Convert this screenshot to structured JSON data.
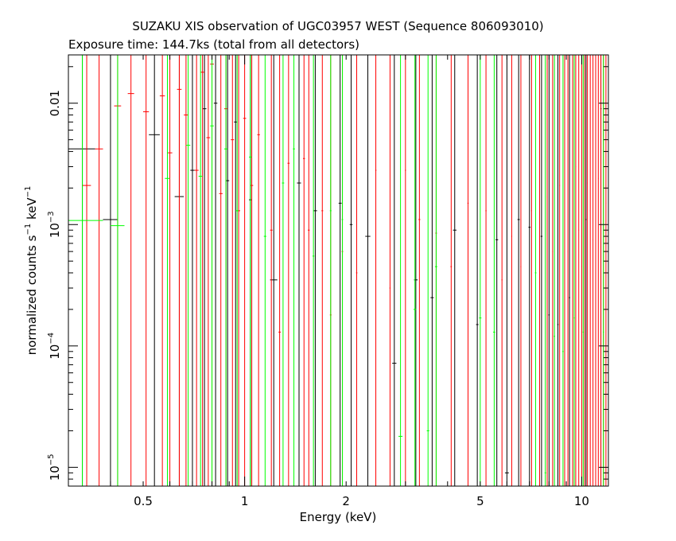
{
  "chart_data": {
    "type": "scatter",
    "title": "SUZAKU XIS observation of UGC03957 WEST (Sequence 806093010)",
    "subtitle": "Exposure time: 144.7ks (total from all detectors)",
    "xlabel": "Energy (keV)",
    "ylabel": {
      "main": "normalized counts s",
      "exp1": "−1",
      "mid": " keV",
      "exp2": "−1"
    },
    "xscale": "log",
    "yscale": "log",
    "xlim": [
      0.3,
      12.0
    ],
    "ylim": [
      7e-06,
      0.025
    ],
    "xticks": [
      {
        "value": 0.5,
        "label": "0.5"
      },
      {
        "value": 1,
        "label": "1"
      },
      {
        "value": 2,
        "label": "2"
      },
      {
        "value": 5,
        "label": "5"
      },
      {
        "value": 10,
        "label": "10"
      }
    ],
    "yticks": [
      {
        "value": 0.01,
        "base": "0.01",
        "exp": ""
      },
      {
        "value": 0.001,
        "base": "10",
        "exp": "−3"
      },
      {
        "value": 0.0001,
        "base": "10",
        "exp": "−4"
      },
      {
        "value": 1e-05,
        "base": "10",
        "exp": "−5"
      }
    ],
    "colors": {
      "black": "#000000",
      "red": "#ff0000",
      "green": "#00ff00"
    },
    "series": [
      {
        "color": "black",
        "points": [
          [
            0.33,
            0.0042,
            0.3,
            0.36
          ],
          [
            0.4,
            0.0011,
            0.38,
            0.42
          ],
          [
            0.54,
            0.0055,
            0.52,
            0.56
          ],
          [
            0.64,
            0.0017,
            0.62,
            0.66
          ],
          [
            0.7,
            0.0028,
            0.69,
            0.71
          ],
          [
            0.76,
            0.009,
            0.75,
            0.77
          ],
          [
            0.82,
            0.01,
            0.81,
            0.83
          ],
          [
            0.89,
            0.0023,
            0.88,
            0.9
          ],
          [
            0.94,
            0.007,
            0.93,
            0.95
          ],
          [
            1.04,
            0.0016,
            1.03,
            1.05
          ],
          [
            1.22,
            0.00035,
            1.19,
            1.25
          ],
          [
            1.45,
            0.0022,
            1.43,
            1.47
          ],
          [
            1.62,
            0.0013,
            1.6,
            1.64
          ],
          [
            1.92,
            0.0015,
            1.9,
            1.94
          ],
          [
            2.07,
            0.001,
            2.05,
            2.09
          ],
          [
            2.32,
            0.0008,
            2.28,
            2.36
          ],
          [
            2.78,
            7.2e-05,
            2.74,
            2.82
          ],
          [
            3.22,
            0.00035,
            3.18,
            3.26
          ],
          [
            3.6,
            0.00025,
            3.56,
            3.64
          ],
          [
            4.2,
            0.0009,
            4.15,
            4.25
          ],
          [
            4.9,
            0.00015,
            4.86,
            4.94
          ],
          [
            5.6,
            0.00075,
            5.55,
            5.65
          ],
          [
            6.0,
            9e-06,
            5.92,
            6.08
          ],
          [
            6.5,
            0.0011,
            6.45,
            6.55
          ],
          [
            7.0,
            0.00095,
            6.95,
            7.05
          ],
          [
            7.6,
            0.0008,
            7.55,
            7.65
          ],
          [
            8.0,
            0.00018,
            7.96,
            8.04
          ],
          [
            8.5,
            0.00015,
            8.46,
            8.54
          ],
          [
            9.2,
            0.00025,
            9.16,
            9.24
          ],
          [
            10.3,
            0.0011,
            10.26,
            10.34
          ],
          [
            11.4,
            0.009,
            11.35,
            11.45
          ]
        ]
      },
      {
        "color": "red",
        "points": [
          [
            0.34,
            0.0021,
            0.33,
            0.35
          ],
          [
            0.37,
            0.0042,
            0.36,
            0.38
          ],
          [
            0.42,
            0.0095,
            0.41,
            0.43
          ],
          [
            0.46,
            0.012,
            0.45,
            0.47
          ],
          [
            0.51,
            0.0085,
            0.5,
            0.52
          ],
          [
            0.57,
            0.0115,
            0.56,
            0.58
          ],
          [
            0.6,
            0.0039,
            0.59,
            0.61
          ],
          [
            0.64,
            0.013,
            0.63,
            0.65
          ],
          [
            0.67,
            0.008,
            0.66,
            0.68
          ],
          [
            0.72,
            0.0028,
            0.71,
            0.73
          ],
          [
            0.75,
            0.018,
            0.74,
            0.76
          ],
          [
            0.78,
            0.0052,
            0.77,
            0.79
          ],
          [
            0.8,
            0.021,
            0.79,
            0.81
          ],
          [
            0.85,
            0.0018,
            0.84,
            0.86
          ],
          [
            0.88,
            0.009,
            0.87,
            0.89
          ],
          [
            0.92,
            0.005,
            0.91,
            0.93
          ],
          [
            0.96,
            0.0013,
            0.95,
            0.97
          ],
          [
            1.0,
            0.0075,
            0.99,
            1.01
          ],
          [
            1.05,
            0.0021,
            1.04,
            1.06
          ],
          [
            1.1,
            0.0055,
            1.09,
            1.11
          ],
          [
            1.2,
            0.0009,
            1.19,
            1.21
          ],
          [
            1.27,
            0.00013,
            1.26,
            1.28
          ],
          [
            1.35,
            0.0032,
            1.34,
            1.36
          ],
          [
            1.5,
            0.0035,
            1.49,
            1.51
          ],
          [
            1.55,
            0.0009,
            1.54,
            1.56
          ],
          [
            1.7,
            0.0013,
            1.69,
            1.71
          ],
          [
            1.8,
            0.00018,
            1.79,
            1.81
          ],
          [
            1.95,
            0.0006,
            1.94,
            1.96
          ],
          [
            2.15,
            0.0004,
            2.14,
            2.16
          ],
          [
            2.45,
            0.0028,
            2.44,
            2.46
          ],
          [
            2.7,
            0.0003,
            2.69,
            2.71
          ],
          [
            3.0,
            0.0028,
            2.99,
            3.01
          ],
          [
            3.3,
            0.0011,
            3.28,
            3.32
          ],
          [
            3.7,
            0.00085,
            3.68,
            3.72
          ],
          [
            4.1,
            0.00045,
            4.08,
            4.12
          ],
          [
            4.6,
            0.0015,
            4.58,
            4.62
          ],
          [
            5.2,
            0.0013,
            5.18,
            5.22
          ],
          [
            5.8,
            0.00035,
            5.78,
            5.82
          ],
          [
            6.2,
            0.0008,
            6.18,
            6.22
          ],
          [
            6.6,
            0.00045,
            6.58,
            6.62
          ],
          [
            7.1,
            0.0013,
            7.08,
            7.12
          ],
          [
            7.5,
            0.00022,
            7.48,
            7.52
          ],
          [
            7.9,
            0.0017,
            7.88,
            7.92
          ],
          [
            8.2,
            0.0006,
            8.18,
            8.22
          ],
          [
            8.6,
            0.0021,
            8.58,
            8.62
          ],
          [
            8.9,
            0.0011,
            8.88,
            8.92
          ],
          [
            9.1,
            0.0006,
            9.08,
            9.12
          ],
          [
            9.4,
            0.00018,
            9.38,
            9.42
          ],
          [
            9.6,
            0.003,
            9.58,
            9.62
          ],
          [
            9.8,
            0.0009,
            9.78,
            9.82
          ],
          [
            10.0,
            0.00045,
            9.98,
            10.02
          ],
          [
            10.2,
            0.0035,
            10.18,
            10.22
          ],
          [
            10.4,
            0.0022,
            10.38,
            10.42
          ],
          [
            10.6,
            0.0013,
            10.58,
            10.62
          ],
          [
            10.8,
            0.00075,
            10.78,
            10.82
          ],
          [
            11.0,
            0.006,
            10.98,
            11.02
          ],
          [
            11.2,
            0.0024,
            11.18,
            11.22
          ],
          [
            11.4,
            0.0044,
            11.38,
            11.42
          ],
          [
            11.6,
            0.0095,
            11.58,
            11.62
          ],
          [
            11.8,
            0.0015,
            11.78,
            11.82
          ]
        ]
      },
      {
        "color": "green",
        "points": [
          [
            0.33,
            0.00108,
            0.3,
            0.38
          ],
          [
            0.42,
            0.00098,
            0.4,
            0.44
          ],
          [
            0.59,
            0.0024,
            0.58,
            0.6
          ],
          [
            0.68,
            0.0045,
            0.67,
            0.69
          ],
          [
            0.74,
            0.0025,
            0.73,
            0.75
          ],
          [
            0.8,
            0.0065,
            0.79,
            0.81
          ],
          [
            0.88,
            0.0042,
            0.87,
            0.89
          ],
          [
            0.95,
            0.0013,
            0.94,
            0.96
          ],
          [
            1.04,
            0.0036,
            1.03,
            1.05
          ],
          [
            1.15,
            0.0008,
            1.14,
            1.16
          ],
          [
            1.3,
            0.0022,
            1.29,
            1.31
          ],
          [
            1.4,
            0.0042,
            1.39,
            1.41
          ],
          [
            1.6,
            0.00055,
            1.59,
            1.61
          ],
          [
            1.8,
            0.0013,
            1.79,
            1.81
          ],
          [
            1.95,
            0.0011,
            1.94,
            1.96
          ],
          [
            2.9,
            1.8e-05,
            2.86,
            2.94
          ],
          [
            3.2,
            0.0002,
            3.17,
            3.23
          ],
          [
            3.5,
            2e-05,
            3.47,
            3.53
          ],
          [
            3.7,
            0.00045,
            3.67,
            3.73
          ],
          [
            5.0,
            0.00017,
            4.96,
            5.04
          ],
          [
            5.5,
            0.00013,
            5.46,
            5.54
          ],
          [
            7.3,
            0.0004,
            7.26,
            7.34
          ],
          [
            7.8,
            9e-06,
            7.76,
            7.84
          ],
          [
            8.3,
            0.00012,
            8.26,
            8.34
          ],
          [
            8.8,
            9e-05,
            8.76,
            8.84
          ],
          [
            9.5,
            0.00017,
            9.46,
            9.54
          ],
          [
            10.1,
            0.00013,
            10.06,
            10.14
          ],
          [
            11.6,
            0.00013,
            11.56,
            11.64
          ]
        ]
      }
    ]
  }
}
